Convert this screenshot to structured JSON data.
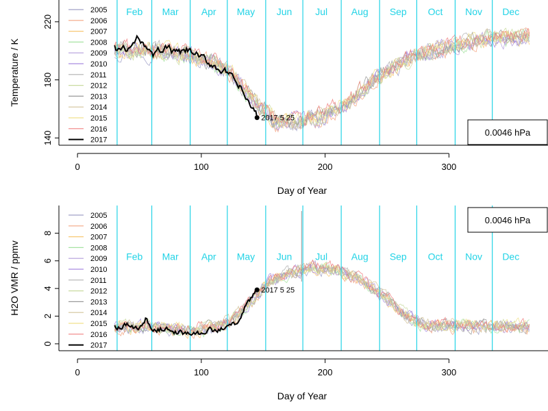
{
  "chart_data": [
    {
      "type": "line",
      "title": "",
      "xlabel": "Day of Year",
      "ylabel": "Temperature / K",
      "xlim": [
        -15,
        380
      ],
      "ylim": [
        135,
        235
      ],
      "x_ticks": [
        0,
        100,
        200,
        300
      ],
      "y_ticks": [
        140,
        180,
        220
      ],
      "pressure_label": "0.0046 hPa",
      "month_boundaries_doy": [
        32,
        60,
        91,
        121,
        152,
        182,
        213,
        244,
        274,
        305,
        335
      ],
      "months": [
        {
          "label": "Feb",
          "x": 46
        },
        {
          "label": "Mar",
          "x": 75
        },
        {
          "label": "Apr",
          "x": 106
        },
        {
          "label": "May",
          "x": 136
        },
        {
          "label": "Jun",
          "x": 167
        },
        {
          "label": "Jul",
          "x": 197
        },
        {
          "label": "Aug",
          "x": 228
        },
        {
          "label": "Sep",
          "x": 259
        },
        {
          "label": "Oct",
          "x": 289
        },
        {
          "label": "Nov",
          "x": 320
        },
        {
          "label": "Dec",
          "x": 350
        }
      ],
      "month_label_y": 227,
      "climatology_anchors": {
        "x": [
          30,
          60,
          90,
          120,
          140,
          160,
          180,
          200,
          220,
          240,
          270,
          300,
          330,
          365
        ],
        "y": [
          200,
          200,
          197,
          188,
          168,
          151,
          151,
          155,
          165,
          180,
          196,
          202,
          208,
          210
        ],
        "noise": 9
      },
      "current_year_anchors": {
        "x": [
          30,
          40,
          50,
          55,
          60,
          70,
          80,
          90,
          100,
          110,
          120,
          130,
          140,
          145
        ],
        "y": [
          202,
          200,
          209,
          205,
          196,
          203,
          198,
          200,
          195,
          190,
          185,
          176,
          162,
          154
        ],
        "noise": 4
      },
      "series": [
        {
          "name": "2005",
          "color": "#a0a0c8"
        },
        {
          "name": "2006",
          "color": "#f4a582"
        },
        {
          "name": "2007",
          "color": "#f7c873"
        },
        {
          "name": "2008",
          "color": "#a6e3a1"
        },
        {
          "name": "2009",
          "color": "#b39ddb"
        },
        {
          "name": "2010",
          "color": "#a98be0"
        },
        {
          "name": "2011",
          "color": "#b0b0b0"
        },
        {
          "name": "2012",
          "color": "#c9dba0"
        },
        {
          "name": "2013",
          "color": "#999999"
        },
        {
          "name": "2014",
          "color": "#d2c39a"
        },
        {
          "name": "2015",
          "color": "#f0e08c"
        },
        {
          "name": "2016",
          "color": "#f08080"
        },
        {
          "name": "2017",
          "color": "#000000",
          "current": true
        }
      ],
      "endpoint": {
        "x": 145,
        "y": 154,
        "label": "2017 5 25"
      },
      "legend_position": "top-left"
    },
    {
      "type": "line",
      "title": "",
      "xlabel": "Day of Year",
      "ylabel": "H2O VMR / ppmv",
      "xlim": [
        -15,
        380
      ],
      "ylim": [
        -0.5,
        10
      ],
      "x_ticks": [
        0,
        100,
        200,
        300
      ],
      "y_ticks": [
        0,
        2,
        4,
        6,
        8
      ],
      "pressure_label": "0.0046 hPa",
      "month_boundaries_doy": [
        32,
        60,
        91,
        121,
        152,
        182,
        213,
        244,
        274,
        305,
        335
      ],
      "months": [
        {
          "label": "Feb",
          "x": 46
        },
        {
          "label": "Mar",
          "x": 75
        },
        {
          "label": "Apr",
          "x": 106
        },
        {
          "label": "May",
          "x": 136
        },
        {
          "label": "Jun",
          "x": 167
        },
        {
          "label": "Jul",
          "x": 197
        },
        {
          "label": "Aug",
          "x": 228
        },
        {
          "label": "Sep",
          "x": 259
        },
        {
          "label": "Oct",
          "x": 289
        },
        {
          "label": "Nov",
          "x": 320
        },
        {
          "label": "Dec",
          "x": 350
        }
      ],
      "month_label_y": 6.3,
      "climatology_anchors": {
        "x": [
          30,
          60,
          90,
          110,
          125,
          140,
          155,
          170,
          190,
          210,
          230,
          250,
          265,
          280,
          300,
          365
        ],
        "y": [
          1.2,
          1.2,
          1.0,
          1.1,
          1.6,
          3.0,
          4.5,
          5.0,
          5.5,
          5.3,
          4.5,
          3.2,
          2.0,
          1.3,
          1.3,
          1.2
        ],
        "noise": 0.7
      },
      "current_year_anchors": {
        "x": [
          30,
          40,
          50,
          55,
          60,
          70,
          80,
          90,
          100,
          110,
          120,
          130,
          135,
          140,
          145
        ],
        "y": [
          1.2,
          1.3,
          1.1,
          1.8,
          1.0,
          1.1,
          0.8,
          0.7,
          0.8,
          1.0,
          1.1,
          1.6,
          2.5,
          3.2,
          3.9
        ],
        "noise": 0.3
      },
      "spike": {
        "x": 181,
        "y": 9.6
      },
      "series": [
        {
          "name": "2005",
          "color": "#a0a0c8"
        },
        {
          "name": "2006",
          "color": "#f4a582"
        },
        {
          "name": "2007",
          "color": "#f7c873"
        },
        {
          "name": "2008",
          "color": "#a6e3a1"
        },
        {
          "name": "2009",
          "color": "#b39ddb"
        },
        {
          "name": "2010",
          "color": "#a98be0"
        },
        {
          "name": "2011",
          "color": "#b0b0b0"
        },
        {
          "name": "2012",
          "color": "#c9dba0"
        },
        {
          "name": "2013",
          "color": "#999999"
        },
        {
          "name": "2014",
          "color": "#d2c39a"
        },
        {
          "name": "2015",
          "color": "#f0e08c"
        },
        {
          "name": "2016",
          "color": "#f08080"
        },
        {
          "name": "2017",
          "color": "#000000",
          "current": true
        }
      ],
      "endpoint": {
        "x": 145,
        "y": 3.9,
        "label": "2017 5 25"
      },
      "legend_position": "top-left"
    }
  ],
  "style": {
    "month_line_color": "#22d3e6",
    "month_label_color": "#22d3e6",
    "axis_color": "#000000"
  }
}
